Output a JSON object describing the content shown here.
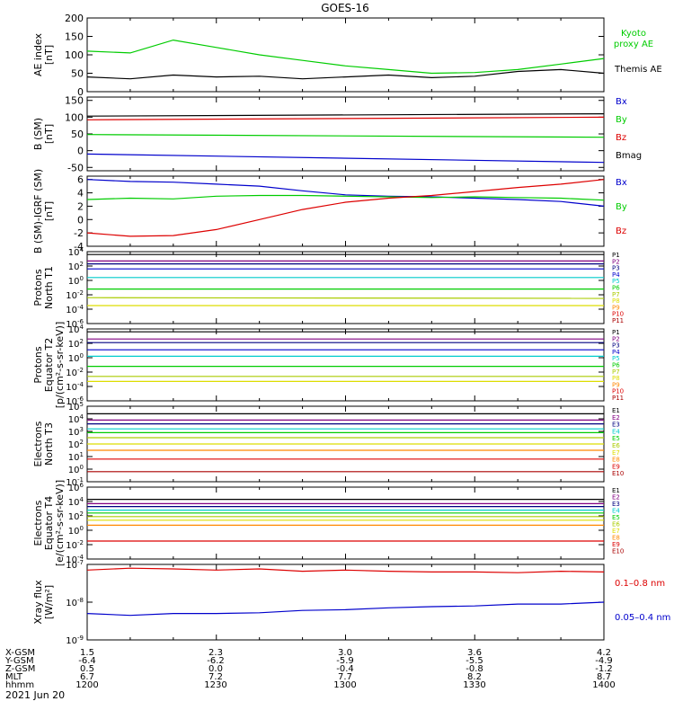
{
  "title": "GOES-16",
  "date_label": "2021 Jun 20",
  "orbit": {
    "row_labels": [
      "X-GSM",
      "Y-GSM",
      "Z-GSM",
      "MLT",
      "hhmm"
    ],
    "columns": [
      [
        "1.5",
        "-6.4",
        "0.5",
        "6.7",
        "1200"
      ],
      [
        "2.3",
        "-6.2",
        "0.0",
        "7.2",
        "1230"
      ],
      [
        "3.0",
        "-5.9",
        "-0.4",
        "7.7",
        "1300"
      ],
      [
        "3.6",
        "-5.5",
        "-0.8",
        "8.2",
        "1330"
      ],
      [
        "4.2",
        "-4.9",
        "-1.2",
        "8.7",
        "1400"
      ]
    ]
  },
  "colors": {
    "black": "#000000",
    "green": "#00cc00",
    "red": "#dd0000",
    "blue": "#0000cc",
    "purple": "#800080",
    "navy": "#000080",
    "cyan": "#00cccc",
    "yellowgreen": "#aacc00",
    "yellow": "#dddd00",
    "orange": "#ff8800",
    "darkred": "#aa0000"
  },
  "chart_data": [
    {
      "type": "line",
      "ylabel": "AE index\n[nT]",
      "ylim": [
        0,
        200
      ],
      "log": false,
      "y_ticks": [
        0,
        50,
        100,
        150,
        200
      ],
      "y_tick_labels": [
        "0",
        "50",
        "100",
        "150",
        "200"
      ],
      "x": [
        0,
        10,
        20,
        30,
        40,
        50,
        60,
        70,
        80,
        90,
        100,
        110,
        120
      ],
      "series": [
        {
          "name": "Kyoto\nproxy AE",
          "color": "#00cc00",
          "values": [
            110,
            105,
            140,
            120,
            100,
            85,
            70,
            60,
            50,
            52,
            60,
            75,
            90
          ]
        },
        {
          "name": "Themis AE",
          "color": "#000000",
          "values": [
            40,
            35,
            45,
            40,
            42,
            35,
            40,
            45,
            38,
            42,
            55,
            60,
            50
          ]
        }
      ]
    },
    {
      "type": "line",
      "ylabel": "B (SM)\n[nT]",
      "ylim": [
        -60,
        160
      ],
      "log": false,
      "y_ticks": [
        -50,
        0,
        50,
        100,
        150
      ],
      "y_tick_labels": [
        "-50",
        "0",
        "50",
        "100",
        "150"
      ],
      "x": [
        0,
        120
      ],
      "series": [
        {
          "name": "Bx",
          "color": "#0000cc",
          "values": [
            -10,
            -35
          ]
        },
        {
          "name": "By",
          "color": "#00cc00",
          "values": [
            48,
            40
          ]
        },
        {
          "name": "Bz",
          "color": "#dd0000",
          "values": [
            92,
            100
          ]
        },
        {
          "name": "Bmag",
          "color": "#000000",
          "values": [
            103,
            110
          ]
        }
      ]
    },
    {
      "type": "line",
      "ylabel": "B (SM)-IGRF (SM)\n[nT]",
      "ylim": [
        -4,
        6.5
      ],
      "log": false,
      "y_ticks": [
        -4,
        -2,
        0,
        2,
        4,
        6
      ],
      "y_tick_labels": [
        "-4",
        "-2",
        "0",
        "2",
        "4",
        "6"
      ],
      "x": [
        0,
        10,
        20,
        30,
        40,
        50,
        60,
        70,
        80,
        90,
        100,
        110,
        120
      ],
      "series": [
        {
          "name": "Bx",
          "color": "#0000cc",
          "values": [
            6,
            5.7,
            5.6,
            5.3,
            5,
            4.3,
            3.7,
            3.5,
            3.4,
            3.2,
            3,
            2.7,
            2
          ]
        },
        {
          "name": "By",
          "color": "#00cc00",
          "values": [
            3,
            3.2,
            3.1,
            3.5,
            3.6,
            3.6,
            3.5,
            3.4,
            3.3,
            3.4,
            3.3,
            3.2,
            2.9
          ]
        },
        {
          "name": "Bz",
          "color": "#dd0000",
          "values": [
            -2,
            -2.5,
            -2.4,
            -1.5,
            0,
            1.5,
            2.6,
            3.2,
            3.6,
            4.2,
            4.8,
            5.3,
            6
          ]
        }
      ]
    },
    {
      "type": "line",
      "ylabel": "Protons\nNorth T1",
      "ylim": [
        -6,
        4
      ],
      "log": true,
      "y_ticks": [
        -6,
        -4,
        -2,
        0,
        2,
        4
      ],
      "y_tick_labels": [
        "10|-6",
        "10|-4",
        "10|-2",
        "10|0",
        "10|2",
        "10|4"
      ],
      "x": [
        0,
        120
      ],
      "legend": [
        [
          "P1",
          "#000000"
        ],
        [
          "P2",
          "#800080"
        ],
        [
          "P3",
          "#000080"
        ],
        [
          "P4",
          "#0000cc"
        ],
        [
          "P5",
          "#00cccc"
        ],
        [
          "P6",
          "#00cc00"
        ],
        [
          "P7",
          "#aacc00"
        ],
        [
          "P8",
          "#dddd00"
        ],
        [
          "P9",
          "#ff8800"
        ],
        [
          "P10",
          "#dd0000"
        ],
        [
          "P11",
          "#aa0000"
        ]
      ],
      "series": [
        {
          "name": "P1",
          "color": "#000000",
          "values": [
            3.6,
            3.6
          ]
        },
        {
          "name": "P2",
          "color": "#800080",
          "values": [
            2.7,
            2.7
          ]
        },
        {
          "name": "P3",
          "color": "#000080",
          "values": [
            2.3,
            2.3
          ]
        },
        {
          "name": "P4",
          "color": "#0000cc",
          "values": [
            1.6,
            1.6
          ]
        },
        {
          "name": "P5",
          "color": "#00cccc",
          "values": [
            0.4,
            0.4
          ]
        },
        {
          "name": "P6",
          "color": "#00cc00",
          "values": [
            -1.2,
            -1.2
          ]
        },
        {
          "name": "P7",
          "color": "#aacc00",
          "values": [
            -2.4,
            -2.5
          ]
        },
        {
          "name": "P8",
          "color": "#dddd00",
          "values": [
            -3.5,
            -3.5
          ]
        }
      ]
    },
    {
      "type": "line",
      "ylabel": "Protons\nEquator T2\n[p/(cm²-s-sr-keV)]",
      "ylim": [
        -6,
        4
      ],
      "log": true,
      "y_ticks": [
        -6,
        -4,
        -2,
        0,
        2,
        4
      ],
      "y_tick_labels": [
        "10|-6",
        "10|-4",
        "10|-2",
        "10|0",
        "10|2",
        "10|4"
      ],
      "x": [
        0,
        120
      ],
      "legend": [
        [
          "P1",
          "#000000"
        ],
        [
          "P2",
          "#800080"
        ],
        [
          "P3",
          "#000080"
        ],
        [
          "P4",
          "#0000cc"
        ],
        [
          "P5",
          "#00cccc"
        ],
        [
          "P6",
          "#00cc00"
        ],
        [
          "P7",
          "#aacc00"
        ],
        [
          "P8",
          "#dddd00"
        ],
        [
          "P9",
          "#ff8800"
        ],
        [
          "P10",
          "#dd0000"
        ],
        [
          "P11",
          "#aa0000"
        ]
      ],
      "series": [
        {
          "name": "P1",
          "color": "#000000",
          "values": [
            3.6,
            3.6
          ]
        },
        {
          "name": "P2",
          "color": "#800080",
          "values": [
            2.6,
            2.6
          ]
        },
        {
          "name": "P3",
          "color": "#000080",
          "values": [
            2.1,
            2.1
          ]
        },
        {
          "name": "P4",
          "color": "#0000cc",
          "values": [
            1.1,
            1.1
          ]
        },
        {
          "name": "P5",
          "color": "#00cccc",
          "values": [
            0.2,
            0.2
          ]
        },
        {
          "name": "P6",
          "color": "#00cc00",
          "values": [
            -1.2,
            -1.2
          ]
        },
        {
          "name": "P7",
          "color": "#aacc00",
          "values": [
            -2.6,
            -2.6
          ]
        },
        {
          "name": "P8",
          "color": "#dddd00",
          "values": [
            -3.3,
            -3.3
          ]
        }
      ]
    },
    {
      "type": "line",
      "ylabel": "Electrons\nNorth T3",
      "ylim": [
        -1,
        5
      ],
      "log": true,
      "y_ticks": [
        -1,
        0,
        1,
        2,
        3,
        4,
        5
      ],
      "y_tick_labels": [
        "10|-1",
        "10|0",
        "10|1",
        "10|2",
        "10|3",
        "10|4",
        "10|5"
      ],
      "x": [
        0,
        120
      ],
      "legend": [
        [
          "E1",
          "#000000"
        ],
        [
          "E2",
          "#800080"
        ],
        [
          "E3",
          "#000080"
        ],
        [
          "E4",
          "#00cccc"
        ],
        [
          "E5",
          "#00cc00"
        ],
        [
          "E6",
          "#aacc00"
        ],
        [
          "E7",
          "#dddd00"
        ],
        [
          "E8",
          "#ff8800"
        ],
        [
          "E9",
          "#dd0000"
        ],
        [
          "E10",
          "#aa0000"
        ]
      ],
      "series": [
        {
          "name": "E1",
          "color": "#000000",
          "values": [
            4.4,
            4.4
          ]
        },
        {
          "name": "E2",
          "color": "#800080",
          "values": [
            3.9,
            3.9
          ]
        },
        {
          "name": "E3",
          "color": "#000080",
          "values": [
            3.6,
            3.6
          ]
        },
        {
          "name": "E4",
          "color": "#00cccc",
          "values": [
            3.2,
            3.2
          ]
        },
        {
          "name": "E5",
          "color": "#00cc00",
          "values": [
            2.9,
            2.9
          ]
        },
        {
          "name": "E6",
          "color": "#aacc00",
          "values": [
            2.5,
            2.5
          ]
        },
        {
          "name": "E7",
          "color": "#dddd00",
          "values": [
            2.0,
            2.0
          ]
        },
        {
          "name": "E8",
          "color": "#ff8800",
          "values": [
            1.5,
            1.5
          ]
        },
        {
          "name": "E9",
          "color": "#dd0000",
          "values": [
            0.8,
            0.8
          ]
        },
        {
          "name": "E10",
          "color": "#aa0000",
          "values": [
            -0.2,
            -0.2
          ]
        }
      ]
    },
    {
      "type": "line",
      "ylabel": "Electrons\nEquator T4\n[e/(cm²-s-sr-keV)]",
      "ylim": [
        -4,
        6
      ],
      "log": true,
      "y_ticks": [
        -4,
        -2,
        0,
        2,
        4,
        6
      ],
      "y_tick_labels": [
        "10|-4",
        "10|-2",
        "10|0",
        "10|2",
        "10|4",
        "10|6"
      ],
      "x": [
        0,
        120
      ],
      "legend": [
        [
          "E1",
          "#000000"
        ],
        [
          "E2",
          "#800080"
        ],
        [
          "E3",
          "#000080"
        ],
        [
          "E4",
          "#00cccc"
        ],
        [
          "E5",
          "#00cc00"
        ],
        [
          "E6",
          "#aacc00"
        ],
        [
          "E7",
          "#dddd00"
        ],
        [
          "E8",
          "#ff8800"
        ],
        [
          "E9",
          "#dd0000"
        ],
        [
          "E10",
          "#aa0000"
        ]
      ],
      "series": [
        {
          "name": "E1",
          "color": "#000000",
          "values": [
            4.3,
            4.3
          ]
        },
        {
          "name": "E2",
          "color": "#800080",
          "values": [
            3.7,
            3.7
          ]
        },
        {
          "name": "E3",
          "color": "#000080",
          "values": [
            3.3,
            3.3
          ]
        },
        {
          "name": "E4",
          "color": "#00cccc",
          "values": [
            2.8,
            2.8
          ]
        },
        {
          "name": "E5",
          "color": "#00cc00",
          "values": [
            2.4,
            2.4
          ]
        },
        {
          "name": "E6",
          "color": "#aacc00",
          "values": [
            1.9,
            1.9
          ]
        },
        {
          "name": "E7",
          "color": "#dddd00",
          "values": [
            1.4,
            1.4
          ]
        },
        {
          "name": "E8",
          "color": "#ff8800",
          "values": [
            0.7,
            0.7
          ]
        },
        {
          "name": "E9",
          "color": "#dd0000",
          "values": [
            -1.5,
            -1.5
          ]
        }
      ]
    },
    {
      "type": "line",
      "ylabel": "Xray flux\n[W/m²]",
      "ylim": [
        -9,
        -7
      ],
      "log": true,
      "y_ticks": [
        -9,
        -8,
        -7
      ],
      "y_tick_labels": [
        "10|-9",
        "10|-8",
        "10|-7"
      ],
      "x": [
        0,
        10,
        20,
        30,
        40,
        50,
        60,
        70,
        80,
        90,
        100,
        110,
        120
      ],
      "series": [
        {
          "name": "0.1–0.8 nm",
          "color": "#dd0000",
          "values": [
            -7.15,
            -7.1,
            -7.12,
            -7.15,
            -7.12,
            -7.18,
            -7.15,
            -7.18,
            -7.2,
            -7.2,
            -7.22,
            -7.18,
            -7.2
          ]
        },
        {
          "name": "0.05–0.4 nm",
          "color": "#0000cc",
          "values": [
            -8.3,
            -8.35,
            -8.3,
            -8.3,
            -8.28,
            -8.22,
            -8.2,
            -8.15,
            -8.12,
            -8.1,
            -8.05,
            -8.05,
            -8.0
          ]
        }
      ]
    }
  ]
}
